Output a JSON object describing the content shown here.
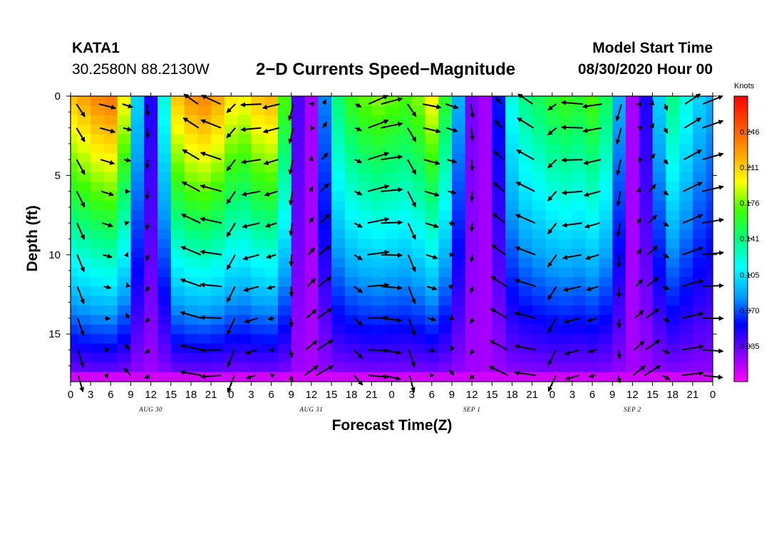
{
  "header": {
    "station_id": "KATA1",
    "coords": "30.2580N 88.2130W",
    "title": "2−D Currents Speed−Magnitude",
    "model_start_label": "Model Start Time",
    "model_start_value": "08/30/2020 Hour 00"
  },
  "chart_data": {
    "type": "heatmap",
    "title": "2−D Currents Speed−Magnitude",
    "xlabel": "Forecast Time(Z)",
    "ylabel": "Depth (ft)",
    "x_hours_range": [
      0,
      96
    ],
    "y_range_ft": [
      0,
      18
    ],
    "x_ticks": [
      "0",
      "3",
      "6",
      "9",
      "12",
      "15",
      "18",
      "21",
      "0",
      "3",
      "6",
      "9",
      "12",
      "15",
      "18",
      "21",
      "0",
      "3",
      "6",
      "9",
      "12",
      "15",
      "18",
      "21",
      "0",
      "3",
      "6",
      "9",
      "12",
      "15",
      "18",
      "21",
      "0"
    ],
    "y_ticks": [
      0,
      5,
      10,
      15
    ],
    "day_labels": [
      {
        "text": "AUG 30",
        "hour": 12
      },
      {
        "text": "AUG 31",
        "hour": 36
      },
      {
        "text": "SEP 1",
        "hour": 60
      },
      {
        "text": "SEP 2",
        "hour": 84
      }
    ],
    "colorbar": {
      "title": "Knots",
      "range": [
        0,
        0.281
      ],
      "ticks": [
        "0.246",
        "0.211",
        "0.176",
        "0.141",
        "0.105",
        "0.070",
        "0.035"
      ],
      "colors": [
        "#ff00ff",
        "#8000ff",
        "#0000ff",
        "#00a0ff",
        "#00ffff",
        "#00ff80",
        "#40ff00",
        "#ffff00",
        "#ffa000",
        "#ff5000",
        "#ff0000"
      ]
    },
    "time_hours": [
      0,
      2,
      4,
      6,
      8,
      10,
      12,
      14,
      16,
      18,
      20,
      22,
      24,
      26,
      28,
      30,
      32,
      34,
      36,
      38,
      40,
      42,
      44,
      46,
      48,
      50,
      52,
      54,
      56,
      58,
      60,
      62,
      64,
      66,
      68,
      70,
      72,
      74,
      76,
      78,
      80,
      82,
      84,
      86,
      88,
      90,
      92,
      94,
      96
    ],
    "surface_speed_knots": [
      0.215,
      0.225,
      0.235,
      0.24,
      0.2,
      0.1,
      0.05,
      0.12,
      0.215,
      0.23,
      0.235,
      0.225,
      0.205,
      0.2,
      0.215,
      0.22,
      0.17,
      0.04,
      0.02,
      0.08,
      0.145,
      0.165,
      0.175,
      0.18,
      0.175,
      0.17,
      0.18,
      0.2,
      0.16,
      0.09,
      0.03,
      0.02,
      0.06,
      0.12,
      0.14,
      0.15,
      0.16,
      0.165,
      0.16,
      0.17,
      0.15,
      0.09,
      0.02,
      0.05,
      0.1,
      0.14,
      0.12,
      0.1,
      0.09
    ],
    "arrow_rows_ft": [
      0.5,
      2,
      4,
      6,
      8,
      10,
      12,
      14,
      16,
      17.6
    ],
    "arrow_times_hours": [
      1.5,
      5.5,
      8.5,
      11.5,
      18,
      21,
      24,
      27,
      30,
      33,
      36,
      38,
      43,
      46,
      48,
      51,
      54,
      57,
      60,
      64,
      68,
      72,
      75,
      78,
      82,
      85,
      87,
      89,
      93,
      96
    ],
    "bottom_speed_knots": 0.02
  },
  "axes": {
    "xlabel": "Forecast Time(Z)",
    "ylabel": "Depth (ft)",
    "colorbar_title": "Knots"
  }
}
